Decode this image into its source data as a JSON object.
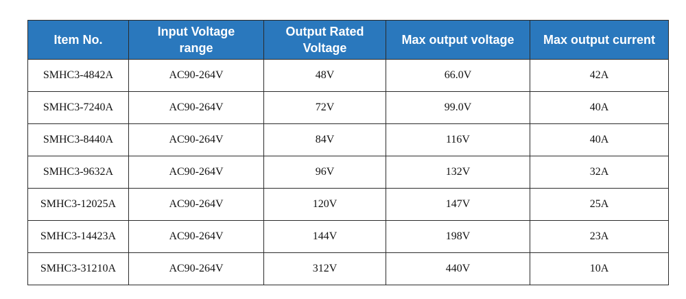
{
  "table": {
    "headers": [
      [
        "Item No."
      ],
      [
        "Input Voltage",
        "range"
      ],
      [
        "Output Rated",
        "Voltage"
      ],
      [
        "Max output voltage"
      ],
      [
        "Max output current"
      ]
    ],
    "rows": [
      [
        "SMHC3-4842A",
        "AC90-264V",
        "48V",
        "66.0V",
        "42A"
      ],
      [
        "SMHC3-7240A",
        "AC90-264V",
        "72V",
        "99.0V",
        "40A"
      ],
      [
        "SMHC3-8440A",
        "AC90-264V",
        "84V",
        "116V",
        "40A"
      ],
      [
        "SMHC3-9632A",
        "AC90-264V",
        "96V",
        "132V",
        "32A"
      ],
      [
        "SMHC3-12025A",
        "AC90-264V",
        "120V",
        "147V",
        "25A"
      ],
      [
        "SMHC3-14423A",
        "AC90-264V",
        "144V",
        "198V",
        "23A"
      ],
      [
        "SMHC3-31210A",
        "AC90-264V",
        "312V",
        "440V",
        "10A"
      ]
    ]
  },
  "colors": {
    "header_bg": "#2a78bd",
    "header_text": "#ffffff",
    "border": "#2a2a2a"
  }
}
